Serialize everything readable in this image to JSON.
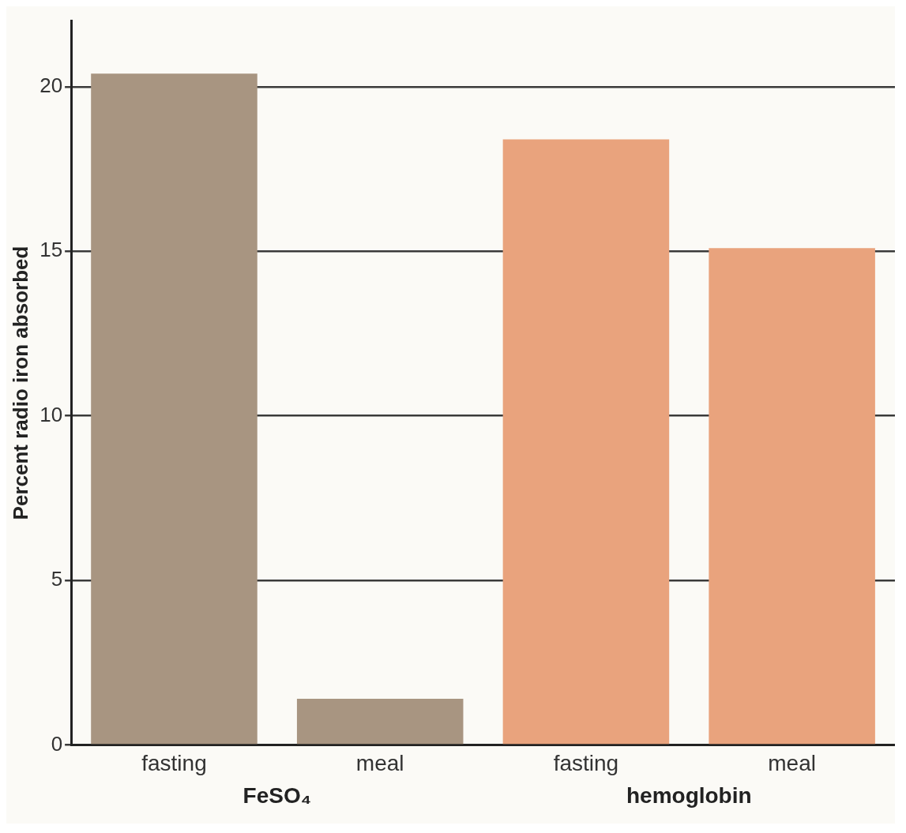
{
  "chart_data": {
    "type": "bar",
    "ylabel": "Percent radio iron absorbed",
    "categories": [
      "fasting",
      "meal",
      "fasting",
      "meal"
    ],
    "values": [
      20.4,
      1.4,
      18.4,
      15.1
    ],
    "colors": [
      "#a89581",
      "#a89581",
      "#e9a37d",
      "#e9a37d"
    ],
    "ylim": [
      0,
      22
    ],
    "yticks": [
      0,
      5,
      10,
      15,
      20
    ],
    "grid": "y",
    "legend": false,
    "annotations": [
      "FeSO₄",
      "hemoglobin"
    ]
  }
}
